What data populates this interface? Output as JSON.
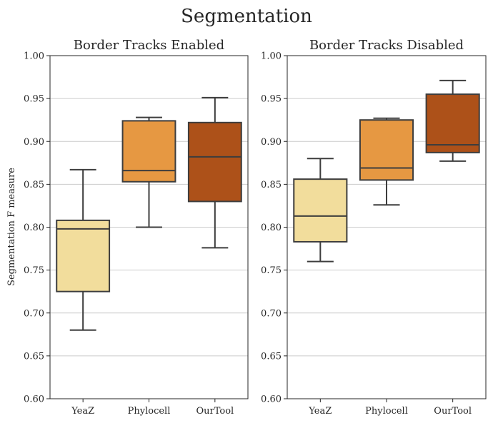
{
  "figure_title": "Segmentation",
  "chart_data": [
    {
      "type": "box",
      "title": "Border Tracks Enabled",
      "xlabel": "",
      "ylabel": "Segmentation F measure",
      "ylim": [
        0.6,
        1.0
      ],
      "yticks": [
        "0.60",
        "0.65",
        "0.70",
        "0.75",
        "0.80",
        "0.85",
        "0.90",
        "0.95",
        "1.00"
      ],
      "grid": "horizontal",
      "categories": [
        "YeaZ",
        "Phylocell",
        "OurTool"
      ],
      "boxes": [
        {
          "category": "YeaZ",
          "whisker_low": 0.68,
          "q1": 0.725,
          "median": 0.798,
          "q3": 0.808,
          "whisker_high": 0.867,
          "color": "#f2dd9c"
        },
        {
          "category": "Phylocell",
          "whisker_low": 0.8,
          "q1": 0.853,
          "median": 0.866,
          "q3": 0.924,
          "whisker_high": 0.928,
          "color": "#e69842"
        },
        {
          "category": "OurTool",
          "whisker_low": 0.776,
          "q1": 0.83,
          "median": 0.882,
          "q3": 0.922,
          "whisker_high": 0.951,
          "color": "#ad5119"
        }
      ]
    },
    {
      "type": "box",
      "title": "Border Tracks Disabled",
      "xlabel": "",
      "ylabel": "",
      "ylim": [
        0.6,
        1.0
      ],
      "yticks": [
        "0.60",
        "0.65",
        "0.70",
        "0.75",
        "0.80",
        "0.85",
        "0.90",
        "0.95",
        "1.00"
      ],
      "grid": "horizontal",
      "categories": [
        "YeaZ",
        "Phylocell",
        "OurTool"
      ],
      "boxes": [
        {
          "category": "YeaZ",
          "whisker_low": 0.76,
          "q1": 0.783,
          "median": 0.813,
          "q3": 0.856,
          "whisker_high": 0.88,
          "color": "#f2dd9c"
        },
        {
          "category": "Phylocell",
          "whisker_low": 0.826,
          "q1": 0.855,
          "median": 0.869,
          "q3": 0.925,
          "whisker_high": 0.927,
          "color": "#e69842"
        },
        {
          "category": "OurTool",
          "whisker_low": 0.877,
          "q1": 0.887,
          "median": 0.896,
          "q3": 0.955,
          "whisker_high": 0.971,
          "color": "#ad5119"
        }
      ]
    }
  ]
}
